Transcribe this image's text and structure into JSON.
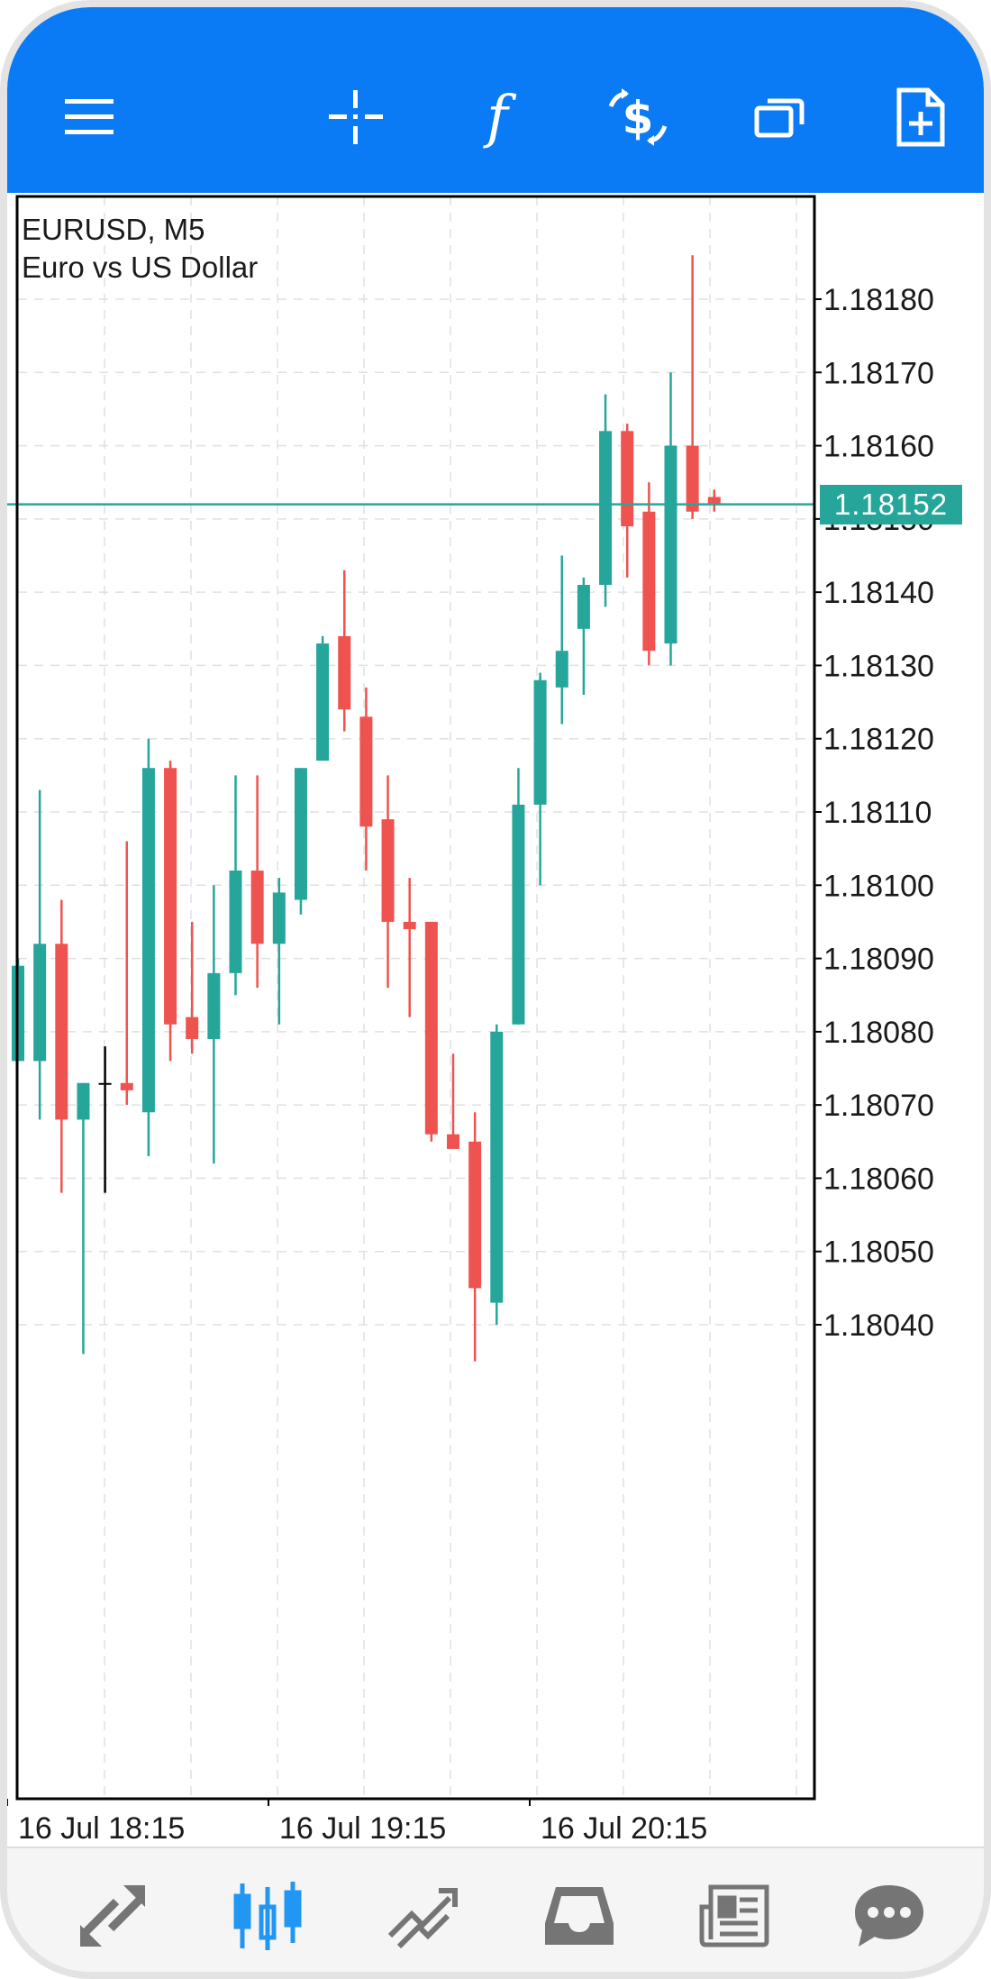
{
  "toolbar": {
    "items": [
      {
        "name": "menu-icon"
      },
      {
        "name": "crosshair-icon"
      },
      {
        "name": "indicators-icon",
        "glyph": "f"
      },
      {
        "name": "trade-icon"
      },
      {
        "name": "windows-icon"
      },
      {
        "name": "new-order-icon"
      }
    ]
  },
  "colors": {
    "accent": "#0a7bf5",
    "bull": "#26a69a",
    "bear": "#ef5350",
    "doji": "#000000",
    "grid": "#e0e0e0",
    "bottom_active": "#2196f3",
    "bottom_inactive": "#757575"
  },
  "chart_data": {
    "type": "candlestick",
    "symbol_line": "EURUSD, M5",
    "description": "Euro vs US Dollar",
    "current_price": "1.18152",
    "current_price_value": 1.18152,
    "ylim": [
      1.18035,
      1.18192
    ],
    "y_ticks": [
      "1.18180",
      "1.18170",
      "1.18160",
      "1.18150",
      "1.18140",
      "1.18130",
      "1.18120",
      "1.18110",
      "1.18100",
      "1.18090",
      "1.18080",
      "1.18070",
      "1.18060",
      "1.18050",
      "1.18040"
    ],
    "x_labels": [
      "16 Jul 18:15",
      "16 Jul 19:15",
      "16 Jul 20:15"
    ],
    "candles": [
      {
        "o": 1.18076,
        "h": 1.1809,
        "l": 1.18076,
        "c": 1.18089
      },
      {
        "o": 1.18076,
        "h": 1.18113,
        "l": 1.18068,
        "c": 1.18092
      },
      {
        "o": 1.18092,
        "h": 1.18098,
        "l": 1.18058,
        "c": 1.18068
      },
      {
        "o": 1.18068,
        "h": 1.18073,
        "l": 1.18036,
        "c": 1.18073
      },
      {
        "o": 1.18073,
        "h": 1.18078,
        "l": 1.18058,
        "c": 1.18073
      },
      {
        "o": 1.18073,
        "h": 1.18106,
        "l": 1.1807,
        "c": 1.18072
      },
      {
        "o": 1.18069,
        "h": 1.1812,
        "l": 1.18063,
        "c": 1.18116
      },
      {
        "o": 1.18116,
        "h": 1.18117,
        "l": 1.18076,
        "c": 1.18081
      },
      {
        "o": 1.18082,
        "h": 1.18095,
        "l": 1.18077,
        "c": 1.18079
      },
      {
        "o": 1.18079,
        "h": 1.181,
        "l": 1.18062,
        "c": 1.18088
      },
      {
        "o": 1.18088,
        "h": 1.18115,
        "l": 1.18085,
        "c": 1.18102
      },
      {
        "o": 1.18102,
        "h": 1.18115,
        "l": 1.18086,
        "c": 1.18092
      },
      {
        "o": 1.18092,
        "h": 1.18101,
        "l": 1.18081,
        "c": 1.18099
      },
      {
        "o": 1.18098,
        "h": 1.18116,
        "l": 1.18096,
        "c": 1.18116
      },
      {
        "o": 1.18117,
        "h": 1.18134,
        "l": 1.18117,
        "c": 1.18133
      },
      {
        "o": 1.18134,
        "h": 1.18143,
        "l": 1.18121,
        "c": 1.18124
      },
      {
        "o": 1.18123,
        "h": 1.18127,
        "l": 1.18102,
        "c": 1.18108
      },
      {
        "o": 1.18109,
        "h": 1.18115,
        "l": 1.18086,
        "c": 1.18095
      },
      {
        "o": 1.18095,
        "h": 1.18101,
        "l": 1.18082,
        "c": 1.18094
      },
      {
        "o": 1.18095,
        "h": 1.18095,
        "l": 1.18065,
        "c": 1.18066
      },
      {
        "o": 1.18066,
        "h": 1.18077,
        "l": 1.18064,
        "c": 1.18064
      },
      {
        "o": 1.18065,
        "h": 1.18069,
        "l": 1.18035,
        "c": 1.18045
      },
      {
        "o": 1.18043,
        "h": 1.18081,
        "l": 1.1804,
        "c": 1.1808
      },
      {
        "o": 1.18081,
        "h": 1.18116,
        "l": 1.18081,
        "c": 1.18111
      },
      {
        "o": 1.18111,
        "h": 1.18129,
        "l": 1.181,
        "c": 1.18128
      },
      {
        "o": 1.18127,
        "h": 1.18145,
        "l": 1.18122,
        "c": 1.18132
      },
      {
        "o": 1.18135,
        "h": 1.18142,
        "l": 1.18126,
        "c": 1.18141
      },
      {
        "o": 1.18141,
        "h": 1.18167,
        "l": 1.18138,
        "c": 1.18162
      },
      {
        "o": 1.18162,
        "h": 1.18163,
        "l": 1.18142,
        "c": 1.18149
      },
      {
        "o": 1.18151,
        "h": 1.18155,
        "l": 1.1813,
        "c": 1.18132
      },
      {
        "o": 1.18133,
        "h": 1.1817,
        "l": 1.1813,
        "c": 1.1816
      },
      {
        "o": 1.1816,
        "h": 1.18186,
        "l": 1.1815,
        "c": 1.18151
      },
      {
        "o": 1.18153,
        "h": 1.18154,
        "l": 1.18151,
        "c": 1.18152
      }
    ]
  },
  "bottom_nav": {
    "items": [
      {
        "name": "quotes-tab-icon",
        "active": false
      },
      {
        "name": "chart-tab-icon",
        "active": true
      },
      {
        "name": "trade-tab-icon",
        "active": false
      },
      {
        "name": "history-tab-icon",
        "active": false
      },
      {
        "name": "news-tab-icon",
        "active": false
      },
      {
        "name": "chat-tab-icon",
        "active": false
      }
    ]
  }
}
